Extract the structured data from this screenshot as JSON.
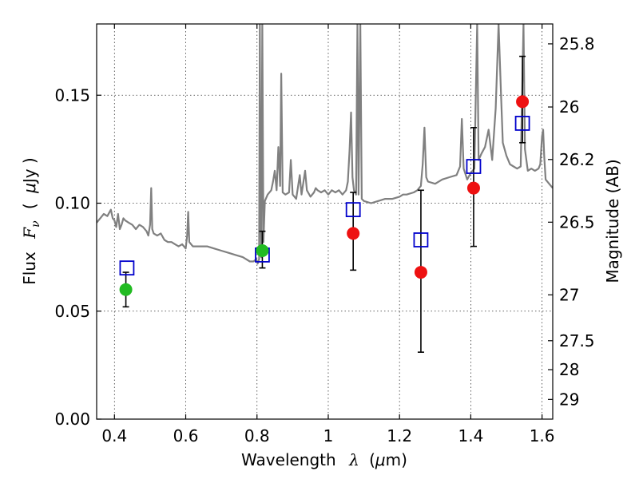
{
  "chart_data": {
    "type": "scatter",
    "title": "",
    "xlabel": "Wavelength",
    "xlabel_symbol": "λ",
    "xlabel_unit_open": "(",
    "xlabel_unit_mu": "μ",
    "xlabel_unit_rest": "m)",
    "ylabel": "Flux",
    "ylabel_symbol": "F",
    "ylabel_subscript": "ν",
    "ylabel_unit_open": "(",
    "ylabel_unit_mu": "μ",
    "ylabel_unit_rest": "Jy )",
    "y2label": "Magnitude (AB)",
    "xlim": [
      0.35,
      1.63
    ],
    "ylim": [
      0.0,
      0.183
    ],
    "grid": true,
    "x_ticks": [
      {
        "value": 0.4,
        "label": "0.4"
      },
      {
        "value": 0.6,
        "label": "0.6"
      },
      {
        "value": 0.8,
        "label": "0.8"
      },
      {
        "value": 1.0,
        "label": "1"
      },
      {
        "value": 1.2,
        "label": "1.2"
      },
      {
        "value": 1.4,
        "label": "1.4"
      },
      {
        "value": 1.6,
        "label": "1.6"
      }
    ],
    "y_ticks": [
      {
        "value": 0.0,
        "label": "0.00"
      },
      {
        "value": 0.05,
        "label": "0.05"
      },
      {
        "value": 0.1,
        "label": "0.10"
      },
      {
        "value": 0.15,
        "label": "0.15"
      }
    ],
    "y2_ticks": [
      {
        "value": 25.8,
        "label": "25.8"
      },
      {
        "value": 26.0,
        "label": "26"
      },
      {
        "value": 26.2,
        "label": "26.2"
      },
      {
        "value": 26.5,
        "label": "26.5"
      },
      {
        "value": 27.0,
        "label": "27"
      },
      {
        "value": 27.5,
        "label": "27.5"
      },
      {
        "value": 28.0,
        "label": "28"
      },
      {
        "value": 29.0,
        "label": "29"
      }
    ],
    "colors": {
      "spectrum": "#808080",
      "model": "#0000cc",
      "optical": "#22bb22",
      "infrared": "#ee1111",
      "errorbar": "#000000"
    },
    "spectrum": [
      [
        0.35,
        0.091
      ],
      [
        0.36,
        0.093
      ],
      [
        0.37,
        0.095
      ],
      [
        0.38,
        0.094
      ],
      [
        0.39,
        0.097
      ],
      [
        0.395,
        0.093
      ],
      [
        0.4,
        0.092
      ],
      [
        0.405,
        0.089
      ],
      [
        0.41,
        0.095
      ],
      [
        0.415,
        0.088
      ],
      [
        0.42,
        0.09
      ],
      [
        0.425,
        0.093
      ],
      [
        0.43,
        0.092
      ],
      [
        0.44,
        0.091
      ],
      [
        0.45,
        0.09
      ],
      [
        0.46,
        0.088
      ],
      [
        0.47,
        0.09
      ],
      [
        0.48,
        0.089
      ],
      [
        0.49,
        0.087
      ],
      [
        0.495,
        0.085
      ],
      [
        0.5,
        0.09
      ],
      [
        0.503,
        0.107
      ],
      [
        0.506,
        0.088
      ],
      [
        0.51,
        0.086
      ],
      [
        0.52,
        0.085
      ],
      [
        0.53,
        0.086
      ],
      [
        0.54,
        0.083
      ],
      [
        0.55,
        0.082
      ],
      [
        0.56,
        0.082
      ],
      [
        0.57,
        0.081
      ],
      [
        0.58,
        0.08
      ],
      [
        0.59,
        0.081
      ],
      [
        0.6,
        0.079
      ],
      [
        0.604,
        0.085
      ],
      [
        0.607,
        0.096
      ],
      [
        0.61,
        0.082
      ],
      [
        0.62,
        0.08
      ],
      [
        0.64,
        0.08
      ],
      [
        0.66,
        0.08
      ],
      [
        0.68,
        0.079
      ],
      [
        0.7,
        0.078
      ],
      [
        0.72,
        0.077
      ],
      [
        0.74,
        0.076
      ],
      [
        0.76,
        0.075
      ],
      [
        0.78,
        0.073
      ],
      [
        0.79,
        0.073
      ],
      [
        0.798,
        0.074
      ],
      [
        0.802,
        0.072
      ],
      [
        0.806,
        0.074
      ],
      [
        0.808,
        0.183
      ],
      [
        0.81,
        0.1
      ],
      [
        0.812,
        0.075
      ],
      [
        0.815,
        0.183
      ],
      [
        0.818,
        0.082
      ],
      [
        0.822,
        0.101
      ],
      [
        0.83,
        0.104
      ],
      [
        0.84,
        0.106
      ],
      [
        0.845,
        0.11
      ],
      [
        0.85,
        0.115
      ],
      [
        0.855,
        0.106
      ],
      [
        0.86,
        0.126
      ],
      [
        0.865,
        0.108
      ],
      [
        0.868,
        0.16
      ],
      [
        0.872,
        0.105
      ],
      [
        0.88,
        0.104
      ],
      [
        0.89,
        0.105
      ],
      [
        0.895,
        0.12
      ],
      [
        0.9,
        0.104
      ],
      [
        0.91,
        0.102
      ],
      [
        0.92,
        0.113
      ],
      [
        0.925,
        0.104
      ],
      [
        0.935,
        0.115
      ],
      [
        0.94,
        0.106
      ],
      [
        0.95,
        0.103
      ],
      [
        0.96,
        0.105
      ],
      [
        0.965,
        0.107
      ],
      [
        0.97,
        0.106
      ],
      [
        0.98,
        0.105
      ],
      [
        0.99,
        0.106
      ],
      [
        1.0,
        0.104
      ],
      [
        1.01,
        0.106
      ],
      [
        1.02,
        0.105
      ],
      [
        1.03,
        0.106
      ],
      [
        1.04,
        0.104
      ],
      [
        1.05,
        0.106
      ],
      [
        1.055,
        0.11
      ],
      [
        1.06,
        0.125
      ],
      [
        1.064,
        0.142
      ],
      [
        1.068,
        0.112
      ],
      [
        1.072,
        0.106
      ],
      [
        1.078,
        0.104
      ],
      [
        1.082,
        0.183
      ],
      [
        1.085,
        0.104
      ],
      [
        1.09,
        0.183
      ],
      [
        1.094,
        0.102
      ],
      [
        1.1,
        0.101
      ],
      [
        1.12,
        0.1
      ],
      [
        1.14,
        0.101
      ],
      [
        1.16,
        0.102
      ],
      [
        1.18,
        0.102
      ],
      [
        1.2,
        0.103
      ],
      [
        1.21,
        0.104
      ],
      [
        1.22,
        0.104
      ],
      [
        1.24,
        0.105
      ],
      [
        1.25,
        0.106
      ],
      [
        1.26,
        0.108
      ],
      [
        1.265,
        0.118
      ],
      [
        1.27,
        0.135
      ],
      [
        1.275,
        0.112
      ],
      [
        1.28,
        0.11
      ],
      [
        1.3,
        0.109
      ],
      [
        1.32,
        0.111
      ],
      [
        1.34,
        0.112
      ],
      [
        1.36,
        0.113
      ],
      [
        1.37,
        0.117
      ],
      [
        1.375,
        0.139
      ],
      [
        1.38,
        0.116
      ],
      [
        1.39,
        0.111
      ],
      [
        1.4,
        0.114
      ],
      [
        1.41,
        0.116
      ],
      [
        1.418,
        0.183
      ],
      [
        1.422,
        0.12
      ],
      [
        1.43,
        0.123
      ],
      [
        1.44,
        0.126
      ],
      [
        1.45,
        0.134
      ],
      [
        1.46,
        0.12
      ],
      [
        1.47,
        0.144
      ],
      [
        1.478,
        0.183
      ],
      [
        1.485,
        0.15
      ],
      [
        1.49,
        0.128
      ],
      [
        1.5,
        0.122
      ],
      [
        1.51,
        0.118
      ],
      [
        1.52,
        0.117
      ],
      [
        1.53,
        0.116
      ],
      [
        1.54,
        0.117
      ],
      [
        1.548,
        0.183
      ],
      [
        1.552,
        0.125
      ],
      [
        1.56,
        0.115
      ],
      [
        1.57,
        0.116
      ],
      [
        1.58,
        0.115
      ],
      [
        1.59,
        0.116
      ],
      [
        1.595,
        0.118
      ],
      [
        1.6,
        0.131
      ],
      [
        1.603,
        0.134
      ],
      [
        1.606,
        0.122
      ],
      [
        1.61,
        0.111
      ],
      [
        1.62,
        0.109
      ],
      [
        1.63,
        0.107
      ]
    ],
    "model_points": [
      {
        "x": 0.435,
        "y": 0.07
      },
      {
        "x": 0.815,
        "y": 0.076
      },
      {
        "x": 1.07,
        "y": 0.097
      },
      {
        "x": 1.26,
        "y": 0.083
      },
      {
        "x": 1.408,
        "y": 0.117
      },
      {
        "x": 1.545,
        "y": 0.137
      }
    ],
    "observed_optical": [
      {
        "x": 0.432,
        "y": 0.06,
        "err_low": 0.052,
        "err_high": 0.068
      },
      {
        "x": 0.815,
        "y": 0.078,
        "err_low": 0.07,
        "err_high": 0.087
      }
    ],
    "observed_infrared": [
      {
        "x": 1.07,
        "y": 0.086,
        "err_low": 0.069,
        "err_high": 0.105
      },
      {
        "x": 1.26,
        "y": 0.068,
        "err_low": 0.031,
        "err_high": 0.106
      },
      {
        "x": 1.408,
        "y": 0.107,
        "err_low": 0.08,
        "err_high": 0.135
      },
      {
        "x": 1.545,
        "y": 0.147,
        "err_low": 0.128,
        "err_high": 0.168
      }
    ]
  }
}
